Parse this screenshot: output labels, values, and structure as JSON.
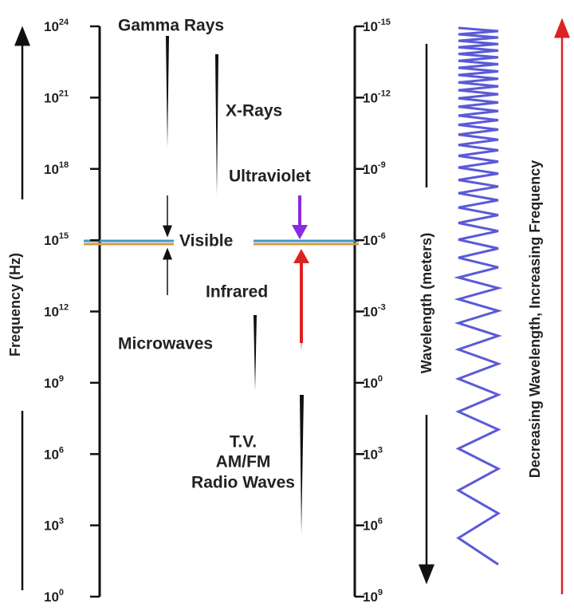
{
  "frequency_axis": {
    "title": "Frequency (Hz)",
    "ticks": [
      {
        "base": "10",
        "exp": "24"
      },
      {
        "base": "10",
        "exp": "21"
      },
      {
        "base": "10",
        "exp": "18"
      },
      {
        "base": "10",
        "exp": "15"
      },
      {
        "base": "10",
        "exp": "12"
      },
      {
        "base": "10",
        "exp": "9"
      },
      {
        "base": "10",
        "exp": "6"
      },
      {
        "base": "10",
        "exp": "3"
      },
      {
        "base": "10",
        "exp": "0"
      }
    ]
  },
  "wavelength_axis": {
    "title": "Wavelength (meters)",
    "ticks": [
      {
        "base": "10",
        "exp": "-15"
      },
      {
        "base": "10",
        "exp": "-12"
      },
      {
        "base": "10",
        "exp": "-9"
      },
      {
        "base": "10",
        "exp": "-6"
      },
      {
        "base": "10",
        "exp": "-3"
      },
      {
        "base": "10",
        "exp": "0"
      },
      {
        "base": "10",
        "exp": "3"
      },
      {
        "base": "10",
        "exp": "6"
      },
      {
        "base": "10",
        "exp": "9"
      }
    ]
  },
  "bands": {
    "gamma": "Gamma Rays",
    "xray": "X-Rays",
    "ultraviolet": "Ultraviolet",
    "visible": "Visible",
    "infrared": "Infrared",
    "microwaves": "Microwaves",
    "radio": [
      "T.V.",
      "AM/FM",
      "Radio Waves"
    ]
  },
  "wave_caption": "Decreasing Wavelength, Increasing Frequency"
}
